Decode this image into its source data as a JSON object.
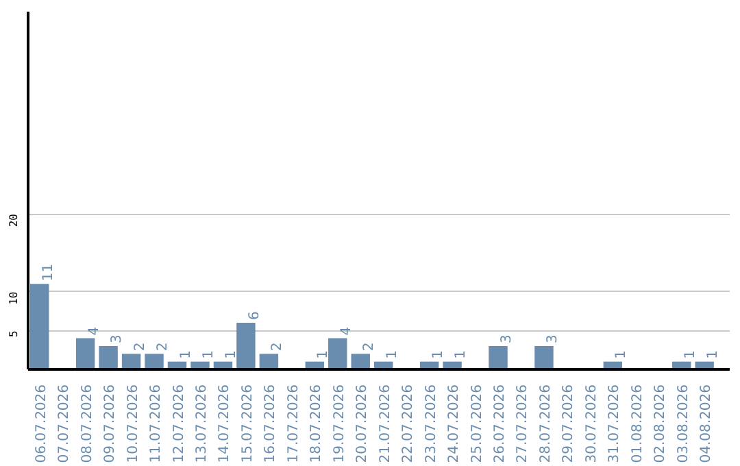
{
  "chart_data": {
    "type": "bar",
    "categories": [
      "06.07.2026",
      "07.07.2026",
      "08.07.2026",
      "09.07.2026",
      "10.07.2026",
      "11.07.2026",
      "12.07.2026",
      "13.07.2026",
      "14.07.2026",
      "15.07.2026",
      "16.07.2026",
      "17.07.2026",
      "18.07.2026",
      "19.07.2026",
      "20.07.2026",
      "21.07.2026",
      "22.07.2026",
      "23.07.2026",
      "24.07.2026",
      "25.07.2026",
      "26.07.2026",
      "27.07.2026",
      "28.07.2026",
      "29.07.2026",
      "30.07.2026",
      "31.07.2026",
      "01.08.2026",
      "02.08.2026",
      "03.08.2026",
      "04.08.2026"
    ],
    "values": [
      11,
      0,
      4,
      3,
      2,
      2,
      1,
      1,
      1,
      6,
      2,
      0,
      1,
      4,
      2,
      1,
      0,
      1,
      1,
      0,
      3,
      0,
      3,
      0,
      0,
      1,
      0,
      0,
      1,
      1
    ],
    "value_labels": [
      "11",
      null,
      "4",
      "3",
      "2",
      "2",
      "1",
      "1",
      "1",
      "6",
      "2",
      null,
      "1",
      "4",
      "2",
      "1",
      null,
      "1",
      "1",
      null,
      "3",
      null,
      "3",
      null,
      null,
      "1",
      null,
      null,
      "1",
      "1"
    ],
    "color": "#6a8caf",
    "ylim": [
      0,
      46
    ],
    "yticks": [
      5,
      10,
      20
    ],
    "grid": "y"
  }
}
